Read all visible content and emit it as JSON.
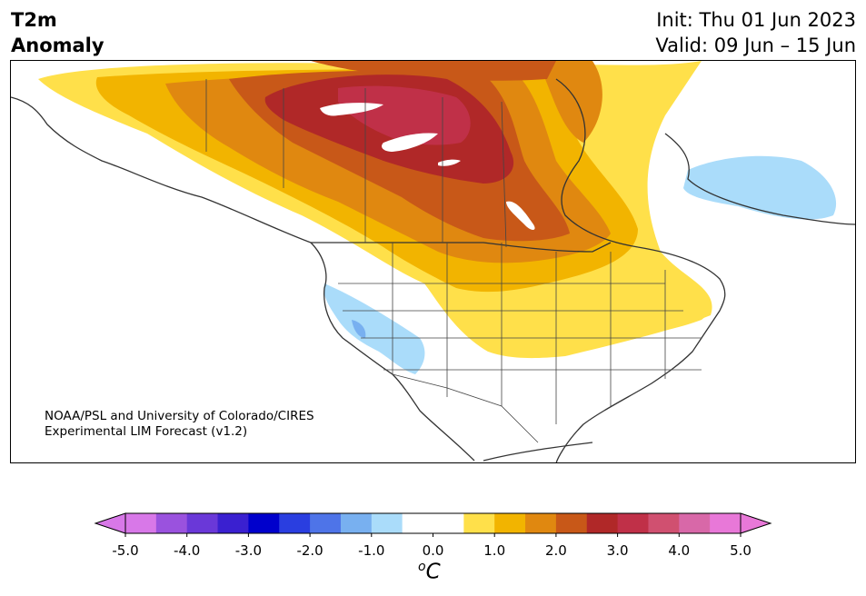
{
  "header": {
    "title_line1": "T2m",
    "title_line2": "Anomaly",
    "init": "Init: Thu 01 Jun 2023",
    "valid": "Valid: 09 Jun – 15 Jun"
  },
  "credit": {
    "line1": "NOAA/PSL and University of Colorado/CIRES",
    "line2": "Experimental LIM Forecast (v1.2)"
  },
  "colorbar": {
    "unit_base": "C",
    "unit_super": "o",
    "ticks": [
      "-5.0",
      "-4.0",
      "-3.0",
      "-2.0",
      "-1.0",
      "0.0",
      "1.0",
      "2.0",
      "3.0",
      "4.0",
      "5.0"
    ],
    "under_color": "#d878e8",
    "over_color": "#e878d8",
    "colors": [
      "#d878e8",
      "#9a52de",
      "#6a38d8",
      "#3a20d0",
      "#0000cc",
      "#2a3ee0",
      "#4e74e8",
      "#78b0f0",
      "#aadcfa",
      "#ffffff",
      "#ffffff",
      "#ffe04a",
      "#f2b400",
      "#e08810",
      "#c85818",
      "#b02828",
      "#c03048",
      "#d05070",
      "#d868a8",
      "#e878d8"
    ]
  },
  "map": {
    "colors": {
      "light_yellow": "#ffe04a",
      "yellow": "#f2b400",
      "orange": "#e08810",
      "dark_orange": "#c85818",
      "red": "#b02828",
      "crimson": "#c03048",
      "light_blue": "#aadcfa",
      "blue": "#78b0f0",
      "lines": "#333333"
    }
  }
}
